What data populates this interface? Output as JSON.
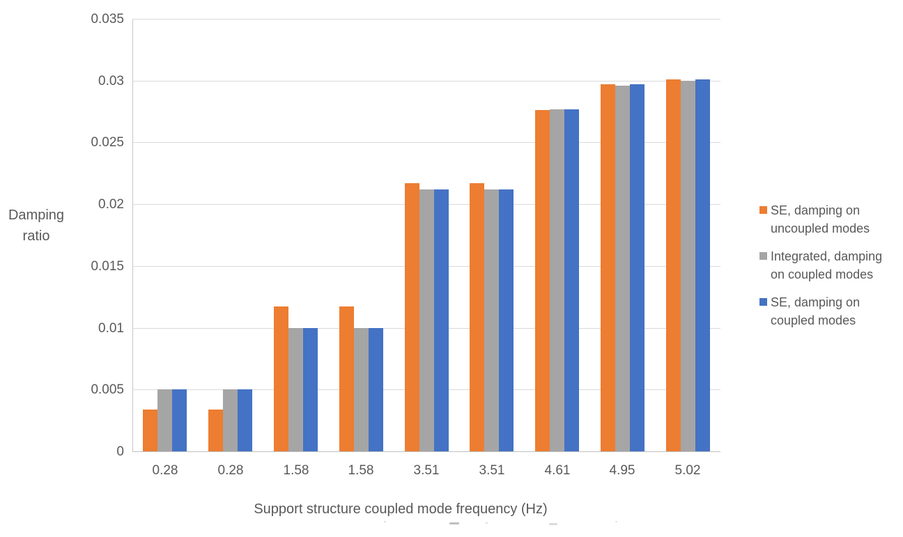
{
  "chart_data": {
    "type": "bar",
    "title": "",
    "xlabel": "Support structure coupled mode frequency (Hz)",
    "ylabel": "Damping ratio",
    "ylabel_lines": [
      "Damping",
      "ratio"
    ],
    "categories": [
      "0.28",
      "0.28",
      "1.58",
      "1.58",
      "3.51",
      "3.51",
      "4.61",
      "4.95",
      "5.02"
    ],
    "series": [
      {
        "name": "SE, damping on uncoupled modes",
        "name_lines": [
          "SE, damping on",
          "uncoupled modes"
        ],
        "color": "#ED7D31",
        "values": [
          0.0034,
          0.0034,
          0.0117,
          0.0117,
          0.0217,
          0.0217,
          0.0276,
          0.0297,
          0.0301
        ]
      },
      {
        "name": "Integrated, damping on coupled modes",
        "name_lines": [
          "Integrated, damping",
          "on coupled modes"
        ],
        "color": "#A5A5A5",
        "values": [
          0.005,
          0.005,
          0.01,
          0.01,
          0.0212,
          0.0212,
          0.0277,
          0.0296,
          0.03
        ]
      },
      {
        "name": "SE, damping on coupled modes",
        "name_lines": [
          "SE, damping on",
          "coupled modes"
        ],
        "color": "#4472C4",
        "values": [
          0.005,
          0.005,
          0.01,
          0.01,
          0.0212,
          0.0212,
          0.0277,
          0.0297,
          0.0301
        ]
      }
    ],
    "ylim": [
      0,
      0.035
    ],
    "ytick_values": [
      0,
      0.005,
      0.01,
      0.015,
      0.02,
      0.025,
      0.03,
      0.035
    ],
    "ytick_labels": [
      "0",
      "0.005",
      "0.01",
      "0.015",
      "0.02",
      "0.025",
      "0.03",
      "0.035"
    ],
    "grid": true,
    "legend_position": "right"
  },
  "colors": {
    "grid": "#D9D9D9",
    "axis": "#BFBFBF",
    "text": "#595959",
    "background": "#FFFFFF"
  }
}
